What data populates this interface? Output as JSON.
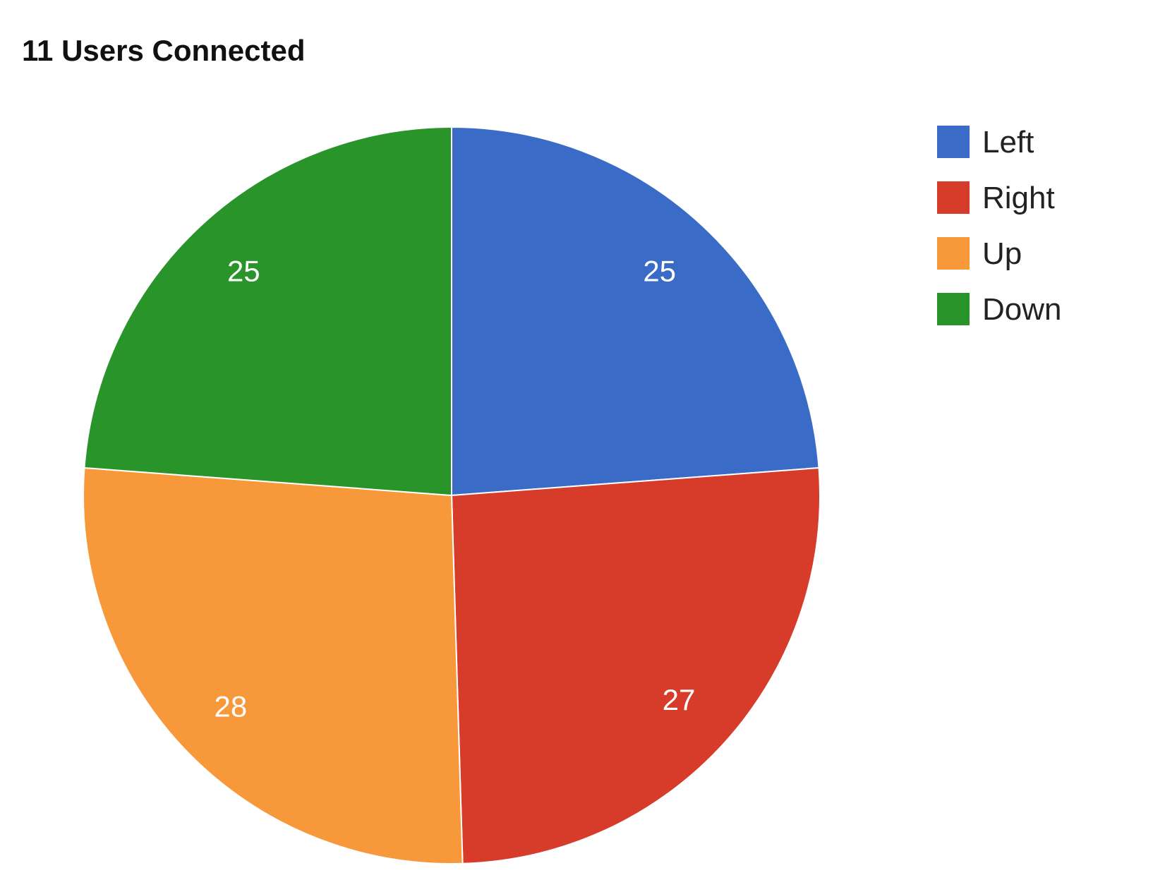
{
  "chart_data": {
    "type": "pie",
    "title": "11 Users Connected",
    "categories": [
      "Left",
      "Right",
      "Up",
      "Down"
    ],
    "values": [
      25,
      27,
      28,
      25
    ],
    "colors": [
      "#3a6bc6",
      "#d63c29",
      "#f7993a",
      "#289429"
    ],
    "slice_labels": [
      "25",
      "27",
      "28",
      "25"
    ],
    "legend_position": "right",
    "start_angle": "top, clockwise"
  }
}
